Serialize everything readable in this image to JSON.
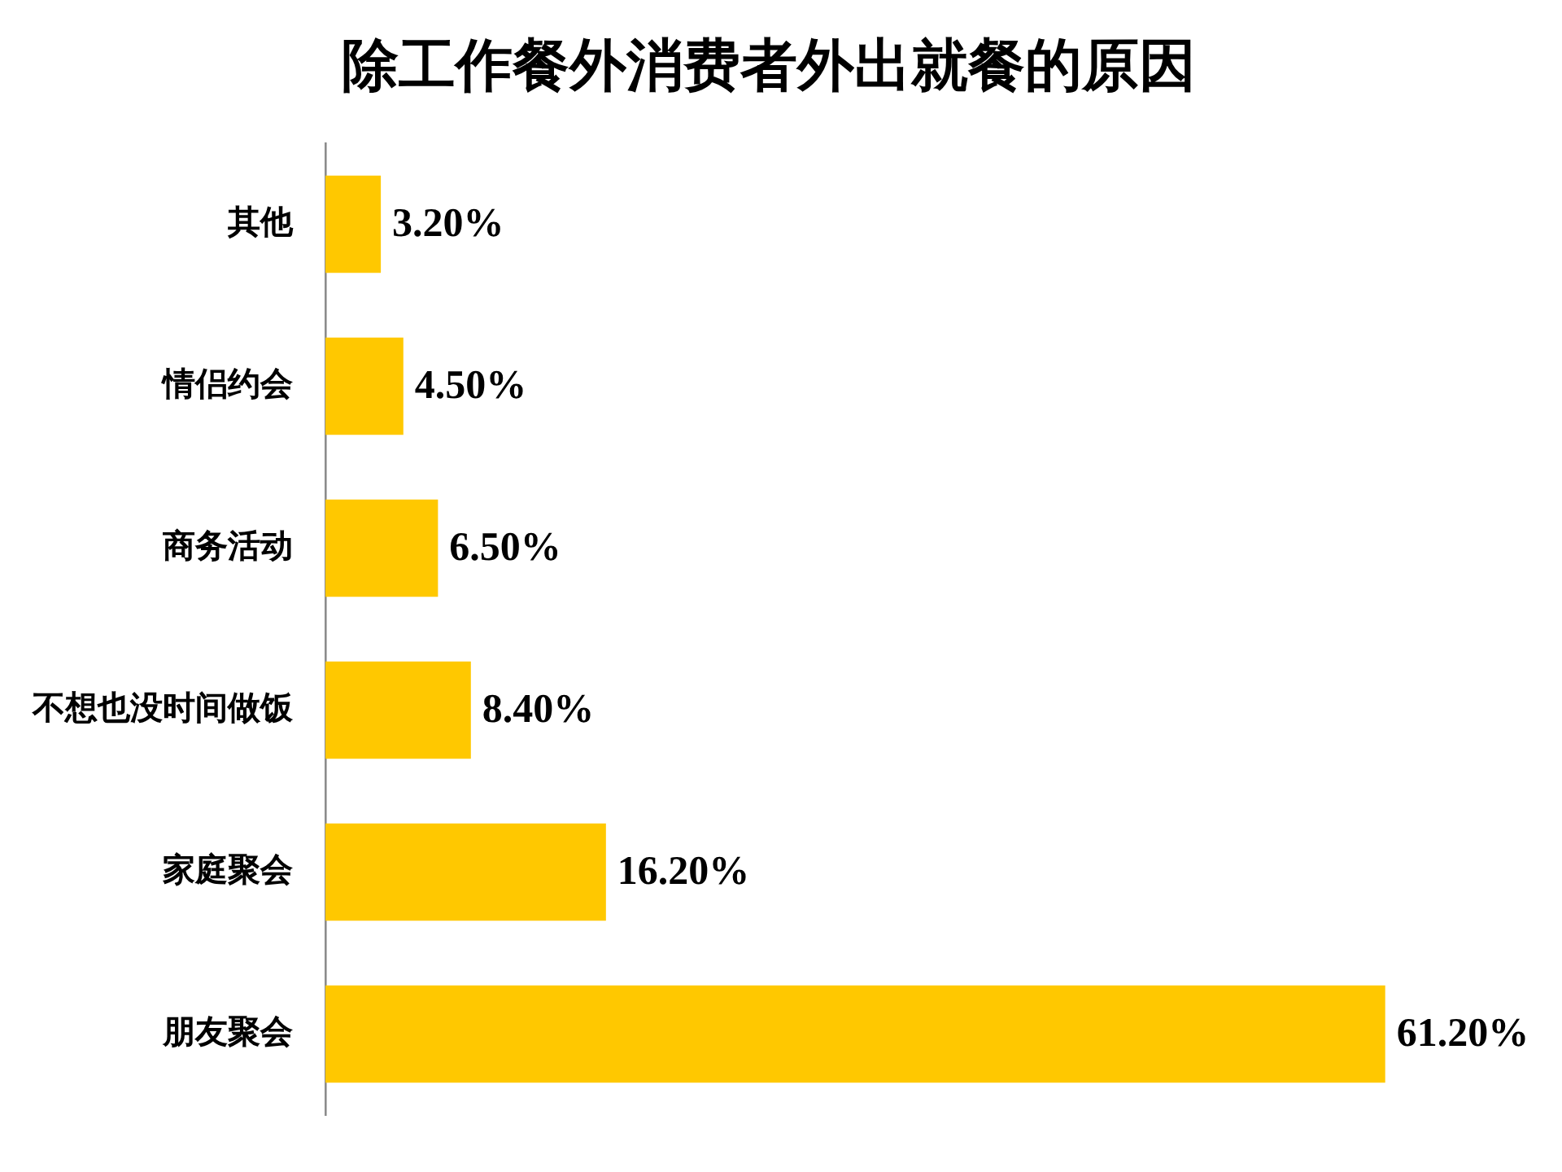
{
  "chart_data": {
    "type": "bar",
    "orientation": "horizontal",
    "title": "除工作餐外消费者外出就餐的原因",
    "categories": [
      "其他",
      "情侣约会",
      "商务活动",
      "不想也没时间做饭",
      "家庭聚会",
      "朋友聚会"
    ],
    "values": [
      3.2,
      4.5,
      6.5,
      8.4,
      16.2,
      61.2
    ],
    "value_labels": [
      "3.20%",
      "4.50%",
      "6.50%",
      "8.40%",
      "16.20%",
      "61.20%"
    ],
    "color": "#ffc800"
  }
}
